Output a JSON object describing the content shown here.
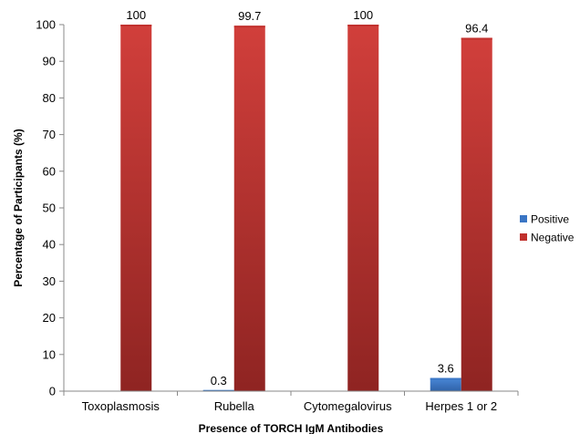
{
  "chart_data": {
    "type": "bar",
    "title": "",
    "xlabel": "Presence of TORCH IgM Antibodies",
    "ylabel": "Percentage of Participants (%)",
    "ylim": [
      0,
      100
    ],
    "yticks": [
      0,
      10,
      20,
      30,
      40,
      50,
      60,
      70,
      80,
      90,
      100
    ],
    "categories": [
      "Toxoplasmosis",
      "Rubella",
      "Cytomegalovirus",
      "Herpes 1 or 2"
    ],
    "series": [
      {
        "name": "Positive",
        "color": "#3a75c4",
        "values": [
          0,
          0.3,
          0,
          3.6
        ],
        "labels": [
          "",
          "0.3",
          "",
          "3.6"
        ]
      },
      {
        "name": "Negative",
        "color": "#c0302d",
        "values": [
          100,
          99.7,
          100,
          96.4
        ],
        "labels": [
          "100",
          "99.7",
          "100",
          "96.4"
        ]
      }
    ],
    "grid": false,
    "legend_position": "right"
  }
}
